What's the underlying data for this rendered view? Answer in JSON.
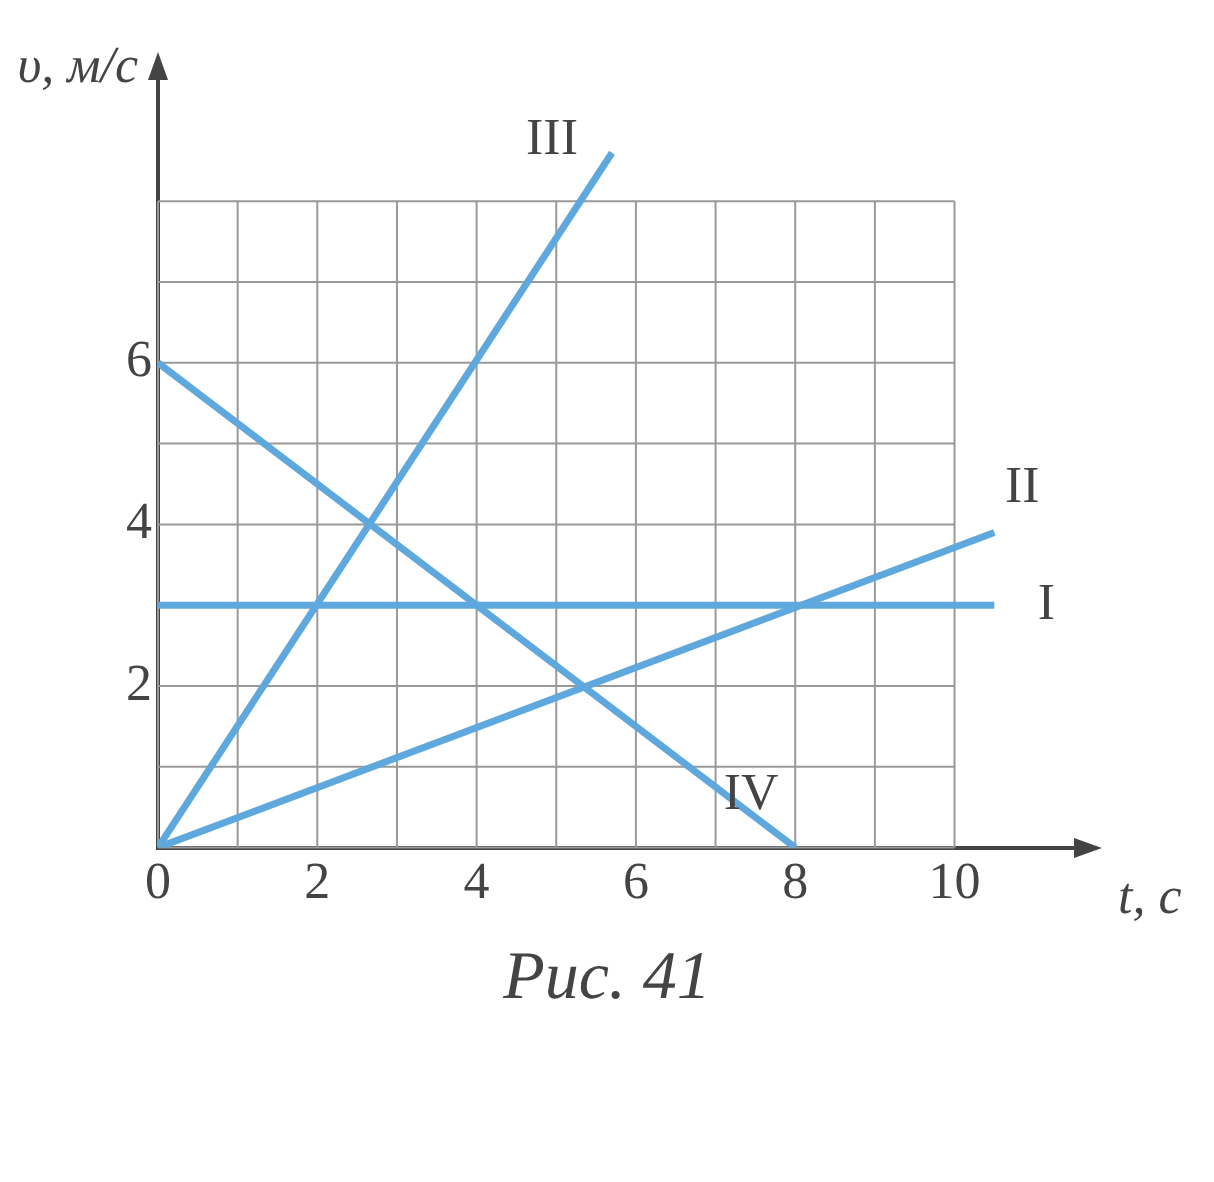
{
  "chart_data": {
    "type": "line",
    "title": "Рис. 41",
    "xlabel": "t, с",
    "ylabel": "υ, м/с",
    "xlim": [
      0,
      11.5
    ],
    "ylim": [
      0,
      9.5
    ],
    "xticks": [
      0,
      {
        "value": 1,
        "label": null
      },
      2,
      {
        "value": 3,
        "label": null
      },
      4,
      {
        "value": 5,
        "label": null
      },
      6,
      {
        "value": 7,
        "label": null
      },
      8,
      {
        "value": 9,
        "label": null
      },
      10
    ],
    "yticks": [
      {
        "value": 0,
        "label": null
      },
      {
        "value": 1,
        "label": null
      },
      2,
      {
        "value": 3,
        "label": null
      },
      4,
      {
        "value": 5,
        "label": null
      },
      6,
      {
        "value": 7,
        "label": null
      },
      {
        "value": 8,
        "label": null
      }
    ],
    "grid": true,
    "legend": false,
    "marker": "none",
    "line_style": "solid",
    "series": [
      {
        "name": "I",
        "color": "#5fa8dd",
        "x": [
          0,
          10.5
        ],
        "values": [
          3,
          3
        ]
      },
      {
        "name": "II",
        "color": "#5fa8dd",
        "x": [
          0,
          10.5
        ],
        "values": [
          0,
          3.9
        ]
      },
      {
        "name": "III",
        "color": "#5fa8dd",
        "x": [
          0,
          5.7
        ],
        "values": [
          0,
          8.6
        ]
      },
      {
        "name": "IV",
        "color": "#5fa8dd",
        "x": [
          0,
          8
        ],
        "values": [
          6,
          0
        ]
      }
    ]
  }
}
